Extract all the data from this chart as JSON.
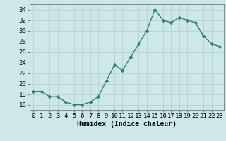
{
  "x": [
    0,
    1,
    2,
    3,
    4,
    5,
    6,
    7,
    8,
    9,
    10,
    11,
    12,
    13,
    14,
    15,
    16,
    17,
    18,
    19,
    20,
    21,
    22,
    23
  ],
  "y": [
    18.5,
    18.5,
    17.5,
    17.5,
    16.5,
    16.0,
    16.0,
    16.5,
    17.5,
    20.5,
    23.5,
    22.5,
    25.0,
    27.5,
    30.0,
    34.0,
    32.0,
    31.5,
    32.5,
    32.0,
    31.5,
    29.0,
    27.5,
    27.0
  ],
  "line_color": "#2e7d6e",
  "marker": "D",
  "marker_size": 2.2,
  "bg_color": "#cce8e8",
  "grid_color": "#b8d4d4",
  "xlabel": "Humidex (Indice chaleur)",
  "ylabel_ticks": [
    16,
    18,
    20,
    22,
    24,
    26,
    28,
    30,
    32,
    34
  ],
  "xtick_labels": [
    "0",
    "1",
    "2",
    "3",
    "4",
    "5",
    "6",
    "7",
    "8",
    "9",
    "10",
    "11",
    "12",
    "13",
    "14",
    "15",
    "16",
    "17",
    "18",
    "19",
    "20",
    "21",
    "22",
    "23"
  ],
  "ylim": [
    15.0,
    35.0
  ],
  "xlim": [
    -0.5,
    23.5
  ],
  "xlabel_fontsize": 7,
  "tick_fontsize": 6.5,
  "line_width": 1.0
}
